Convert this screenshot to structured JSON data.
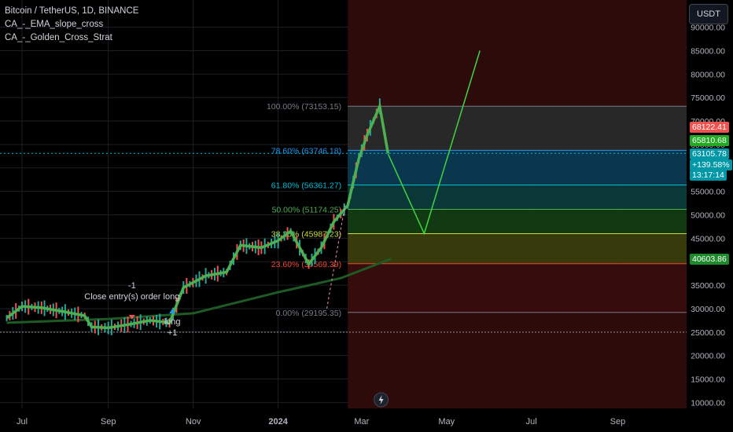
{
  "legend": {
    "symbol": "Bitcoin / TetherUS, 1D, BINANCE",
    "indicators": [
      "CA_-_EMA_slope_cross",
      "CA_-_Golden_Cross_Strat"
    ]
  },
  "currency_button": "USDT",
  "price_tags": {
    "high_price": "68122.41",
    "open_price": "65810.68",
    "last_price": "63105.78",
    "last_change": "+139.58%",
    "countdown": "13:17:14",
    "ma_price": "40603.86"
  },
  "annotations": {
    "close_qty": "-1",
    "close_label": "Close entry(s) order long",
    "long_label": "long",
    "long_qty": "+1"
  },
  "colors": {
    "background": "#000000",
    "grid": "#1c1f26",
    "ema_fast": "#4caf50",
    "ma_slow": "#1e5a23",
    "projection": "#3ed63e",
    "up_candle": "#26a69a",
    "down_candle": "#ef5350",
    "fib_100": "#787b86",
    "fib_786": "#2196f3",
    "fib_618": "#00bcd4",
    "fib_50": "#4caf50",
    "fib_382": "#cddc39",
    "fib_236": "#f44336",
    "fib_0": "#787b86"
  },
  "chart_data": {
    "type": "candlestick",
    "x_tick_labels": [
      "Jul",
      "Sep",
      "Nov",
      "2024",
      "Mar",
      "May",
      "Jul",
      "Sep"
    ],
    "y_tick_labels": [
      "10000.00",
      "15000.00",
      "20000.00",
      "25000.00",
      "30000.00",
      "35000.00",
      "40000.00",
      "45000.00",
      "50000.00",
      "55000.00",
      "60000.00",
      "65000.00",
      "70000.00",
      "75000.00",
      "80000.00",
      "85000.00",
      "90000.00"
    ],
    "y_range": [
      9000,
      92000
    ],
    "fib_levels": [
      {
        "ratio": "100.00%",
        "price": 73153.15,
        "label": "100.00% (73153.15)"
      },
      {
        "ratio": "78.60%",
        "price": 63746.18,
        "label": "78.60% (63746.18)"
      },
      {
        "ratio": "61.80%",
        "price": 56361.27,
        "label": "61.80% (56361.27)"
      },
      {
        "ratio": "50.00%",
        "price": 51174.25,
        "label": "50.00% (51174.25)"
      },
      {
        "ratio": "38.20%",
        "price": 45987.23,
        "label": "38.20% (45987.23)"
      },
      {
        "ratio": "23.60%",
        "price": 39569.39,
        "label": "23.60% (39569.39)"
      },
      {
        "ratio": "0.00%",
        "price": 29195.35,
        "label": "0.00% (29195.35)"
      }
    ],
    "price_path": [
      [
        "2023-06-20",
        28000
      ],
      [
        "2023-07-01",
        30500
      ],
      [
        "2023-07-15",
        30200
      ],
      [
        "2023-08-01",
        29300
      ],
      [
        "2023-08-15",
        28500
      ],
      [
        "2023-08-20",
        26100
      ],
      [
        "2023-09-01",
        25900
      ],
      [
        "2023-09-15",
        26600
      ],
      [
        "2023-10-01",
        27500
      ],
      [
        "2023-10-15",
        27000
      ],
      [
        "2023-10-25",
        34500
      ],
      [
        "2023-11-10",
        37000
      ],
      [
        "2023-11-25",
        37800
      ],
      [
        "2023-12-05",
        43500
      ],
      [
        "2023-12-20",
        43000
      ],
      [
        "2024-01-01",
        44500
      ],
      [
        "2024-01-10",
        46500
      ],
      [
        "2024-01-23",
        39500
      ],
      [
        "2024-02-01",
        43000
      ],
      [
        "2024-02-10",
        48500
      ],
      [
        "2024-02-20",
        52000
      ],
      [
        "2024-02-28",
        62000
      ],
      [
        "2024-03-05",
        67000
      ],
      [
        "2024-03-14",
        73153
      ],
      [
        "2024-03-20",
        63105
      ]
    ],
    "projection_path": [
      [
        "2024-03-20",
        63000
      ],
      [
        "2024-04-15",
        46000
      ],
      [
        "2024-05-25",
        85000
      ]
    ]
  }
}
